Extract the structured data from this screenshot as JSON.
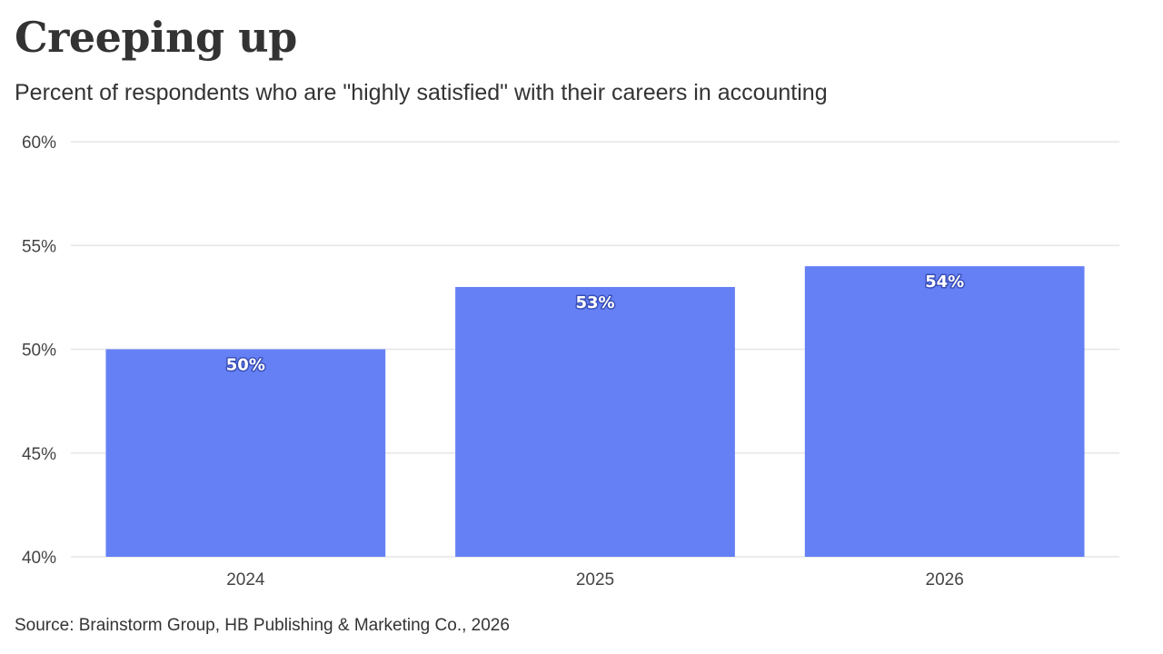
{
  "title": "Creeping up",
  "subtitle": "Percent of respondents who are \"highly satisfied\" with their careers in accounting",
  "source": "Source: Brainstorm Group, HB Publishing & Marketing Co., 2026",
  "colors": {
    "bar": "#6580f5",
    "grid": "#e6e6e6",
    "text": "#333333"
  },
  "chart_data": {
    "type": "bar",
    "categories": [
      "2024",
      "2025",
      "2026"
    ],
    "values": [
      50,
      53,
      54
    ],
    "data_labels": [
      "50%",
      "53%",
      "54%"
    ],
    "ylim": [
      40,
      60
    ],
    "yticks": [
      40,
      45,
      50,
      55,
      60
    ],
    "ytick_labels": [
      "40%",
      "45%",
      "50%",
      "55%",
      "60%"
    ],
    "xlabel": "",
    "ylabel": "",
    "grid": true,
    "legend": "none"
  }
}
